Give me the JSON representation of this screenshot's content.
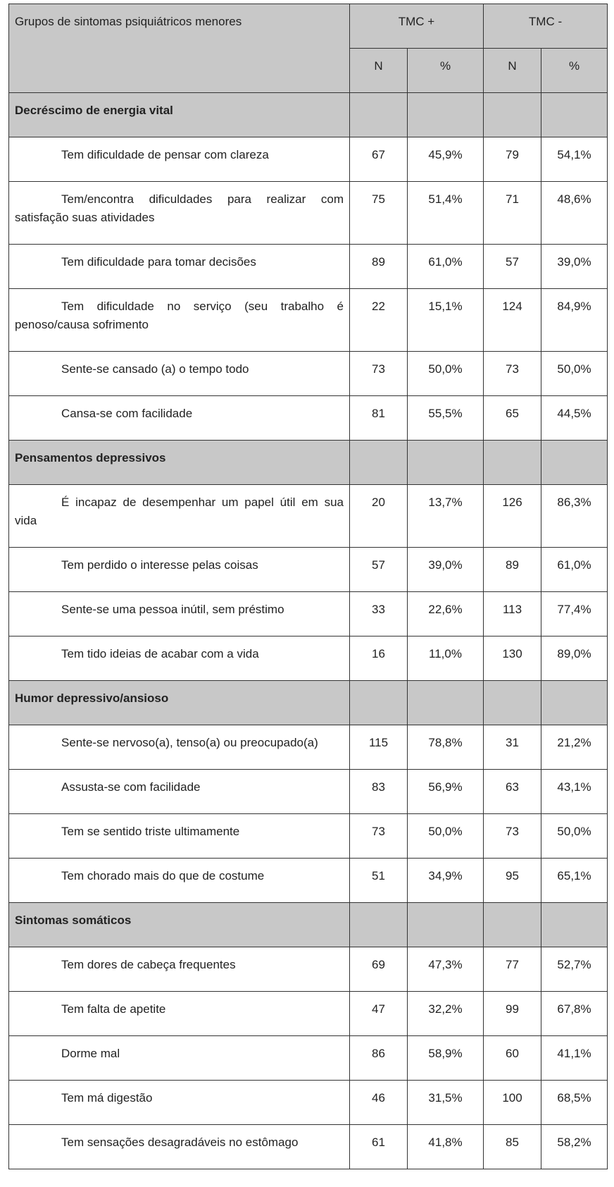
{
  "table": {
    "header": {
      "group": "Grupos de sintomas psiquiátricos menores",
      "tmc_pos": "TMC +",
      "tmc_neg": "TMC -",
      "columns": [
        "N",
        "%",
        "N",
        "%"
      ]
    },
    "sections": [
      {
        "title": "Decréscimo de energia vital",
        "rows": [
          {
            "label": "Tem dificuldade de pensar com clareza",
            "values": [
              67,
              "45,9%",
              79,
              "54,1%"
            ]
          },
          {
            "label": "Tem/encontra dificuldades para realizar com satisfação suas atividades",
            "values": [
              75,
              "51,4%",
              71,
              "48,6%"
            ]
          },
          {
            "label": "Tem dificuldade para tomar decisões",
            "values": [
              89,
              "61,0%",
              57,
              "39,0%"
            ]
          },
          {
            "label": "Tem dificuldade no serviço (seu trabalho é penoso/causa sofrimento",
            "values": [
              22,
              "15,1%",
              124,
              "84,9%"
            ]
          },
          {
            "label": "Sente-se cansado (a) o tempo todo",
            "values": [
              73,
              "50,0%",
              73,
              "50,0%"
            ]
          },
          {
            "label": "Cansa-se com facilidade",
            "values": [
              81,
              "55,5%",
              65,
              "44,5%"
            ]
          }
        ]
      },
      {
        "title": "Pensamentos depressivos",
        "rows": [
          {
            "label": "É incapaz de desempenhar um papel útil em sua vida",
            "values": [
              20,
              "13,7%",
              126,
              "86,3%"
            ]
          },
          {
            "label": "Tem perdido o interesse pelas coisas",
            "values": [
              57,
              "39,0%",
              89,
              "61,0%"
            ]
          },
          {
            "label": "Sente-se uma pessoa inútil, sem préstimo",
            "values": [
              33,
              "22,6%",
              113,
              "77,4%"
            ]
          },
          {
            "label": "Tem tido ideias de acabar com a vida",
            "values": [
              16,
              "11,0%",
              130,
              "89,0%"
            ]
          }
        ]
      },
      {
        "title": "Humor depressivo/ansioso",
        "rows": [
          {
            "label": "Sente-se nervoso(a), tenso(a) ou preocupado(a)",
            "values": [
              115,
              "78,8%",
              31,
              "21,2%"
            ]
          },
          {
            "label": "Assusta-se com facilidade",
            "values": [
              83,
              "56,9%",
              63,
              "43,1%"
            ]
          },
          {
            "label": "Tem se sentido triste ultimamente",
            "values": [
              73,
              "50,0%",
              73,
              "50,0%"
            ]
          },
          {
            "label": "Tem chorado mais do que de costume",
            "values": [
              51,
              "34,9%",
              95,
              "65,1%"
            ]
          }
        ]
      },
      {
        "title": "Sintomas somáticos",
        "rows": [
          {
            "label": "Tem dores de cabeça frequentes",
            "values": [
              69,
              "47,3%",
              77,
              "52,7%"
            ]
          },
          {
            "label": "Tem falta de apetite",
            "values": [
              47,
              "32,2%",
              99,
              "67,8%"
            ]
          },
          {
            "label": "Dorme mal",
            "values": [
              86,
              "58,9%",
              60,
              "41,1%"
            ]
          },
          {
            "label": "Tem má digestão",
            "values": [
              46,
              "31,5%",
              100,
              "68,5%"
            ]
          },
          {
            "label": "Tem sensações desagradáveis no estômago",
            "values": [
              61,
              "41,8%",
              85,
              "58,2%"
            ]
          }
        ]
      }
    ]
  }
}
